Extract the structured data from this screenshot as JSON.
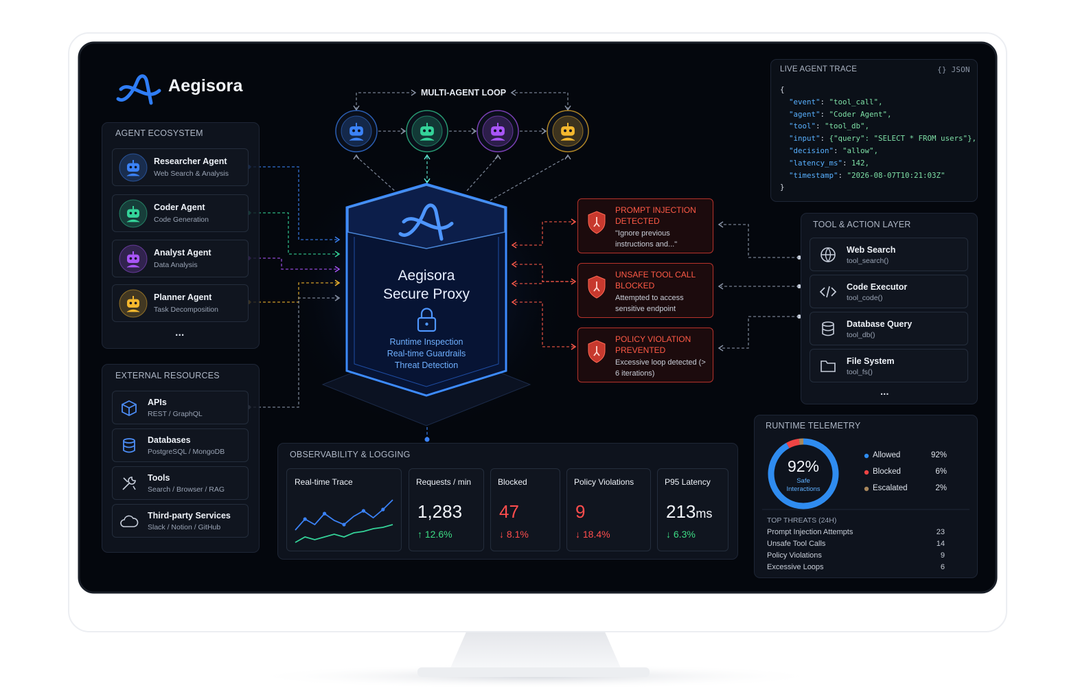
{
  "brand": "Aegisora",
  "agent_ecosystem": {
    "title": "AGENT ECOSYSTEM",
    "agents": [
      {
        "name": "Researcher Agent",
        "desc": "Web Search & Analysis",
        "color": "#3b82f6"
      },
      {
        "name": "Coder Agent",
        "desc": "Code Generation",
        "color": "#34d399"
      },
      {
        "name": "Analyst Agent",
        "desc": "Data Analysis",
        "color": "#a855f7"
      },
      {
        "name": "Planner Agent",
        "desc": "Task Decomposition",
        "color": "#f5b82e"
      }
    ],
    "more": "..."
  },
  "external_resources": {
    "title": "EXTERNAL RESOURCES",
    "items": [
      {
        "name": "APIs",
        "desc": "REST / GraphQL"
      },
      {
        "name": "Databases",
        "desc": "PostgreSQL / MongoDB"
      },
      {
        "name": "Tools",
        "desc": "Search / Browser / RAG"
      },
      {
        "name": "Third-party Services",
        "desc": "Slack / Notion / GitHub"
      }
    ]
  },
  "multi_agent_loop": "MULTI-AGENT LOOP",
  "proxy": {
    "name": "Aegisora",
    "role": "Secure Proxy",
    "features": [
      "Runtime Inspection",
      "Real-time Guardrails",
      "Threat Detection"
    ]
  },
  "alerts": [
    {
      "title": "PROMPT INJECTION DETECTED",
      "detail": "\"Ignore previous instructions and...\""
    },
    {
      "title": "UNSAFE TOOL CALL BLOCKED",
      "detail": "Attempted to access sensitive endpoint"
    },
    {
      "title": "POLICY VIOLATION PREVENTED",
      "detail": "Excessive loop detected (> 6 iterations)"
    }
  ],
  "live_trace": {
    "title": "LIVE AGENT TRACE",
    "format": "{} JSON",
    "lines": [
      "{",
      "  \"event\": \"tool_call\",",
      "  \"agent\": \"Coder Agent\",",
      "  \"tool\": \"tool_db\",",
      "  \"input\": {\"query\": \"SELECT * FROM users\"},",
      "  \"decision\": \"allow\",",
      "  \"latency_ms\": 142,",
      "  \"timestamp\": \"2026-08-07T10:21:03Z\"",
      "}"
    ]
  },
  "tool_layer": {
    "title": "TOOL & ACTION LAYER",
    "tools": [
      {
        "name": "Web Search",
        "call": "tool_search()"
      },
      {
        "name": "Code Executor",
        "call": "tool_code()"
      },
      {
        "name": "Database Query",
        "call": "tool_db()"
      },
      {
        "name": "File System",
        "call": "tool_fs()"
      }
    ],
    "more": "..."
  },
  "observability": {
    "title": "OBSERVABILITY & LOGGING",
    "trace_label": "Real-time Trace",
    "trace_series": [
      {
        "color": "#3b82f6",
        "values": [
          22,
          38,
          30,
          46,
          36,
          30,
          42,
          50,
          40,
          52,
          66
        ]
      },
      {
        "color": "#34d399",
        "values": [
          4,
          12,
          8,
          12,
          16,
          12,
          18,
          20,
          24,
          26,
          30
        ]
      }
    ],
    "metrics": [
      {
        "label": "Requests / min",
        "value": "1,283",
        "change": "↑ 12.6%",
        "value_color": "#f1f4f9",
        "change_color": "#3ddc84"
      },
      {
        "label": "Blocked",
        "value": "47",
        "change": "↓ 8.1%",
        "value_color": "#ff4d4d",
        "change_color": "#ff4d4d"
      },
      {
        "label": "Policy Violations",
        "value": "9",
        "change": "↓ 18.4%",
        "value_color": "#ff4d4d",
        "change_color": "#ff4d4d"
      },
      {
        "label": "P95 Latency",
        "value": "213",
        "unit": "ms",
        "change": "↓ 6.3%",
        "value_color": "#f1f4f9",
        "change_color": "#3ddc84"
      }
    ]
  },
  "telemetry": {
    "title": "RUNTIME TELEMETRY",
    "gauge_label": "Safe Interactions",
    "breakdown": {
      "names": [
        "Allowed",
        "Blocked",
        "Escalated"
      ],
      "values": [
        92,
        6,
        2
      ],
      "value_labels": [
        "92%",
        "6%",
        "2%"
      ],
      "colors": [
        "#2f8cf0",
        "#ef4444",
        "#a8875c"
      ]
    },
    "threats_title": "TOP THREATS (24H)",
    "threats": [
      {
        "name": "Prompt Injection Attempts",
        "count": 23
      },
      {
        "name": "Unsafe Tool Calls",
        "count": 14
      },
      {
        "name": "Policy Violations",
        "count": 9
      },
      {
        "name": "Excessive Loops",
        "count": 6
      }
    ]
  }
}
